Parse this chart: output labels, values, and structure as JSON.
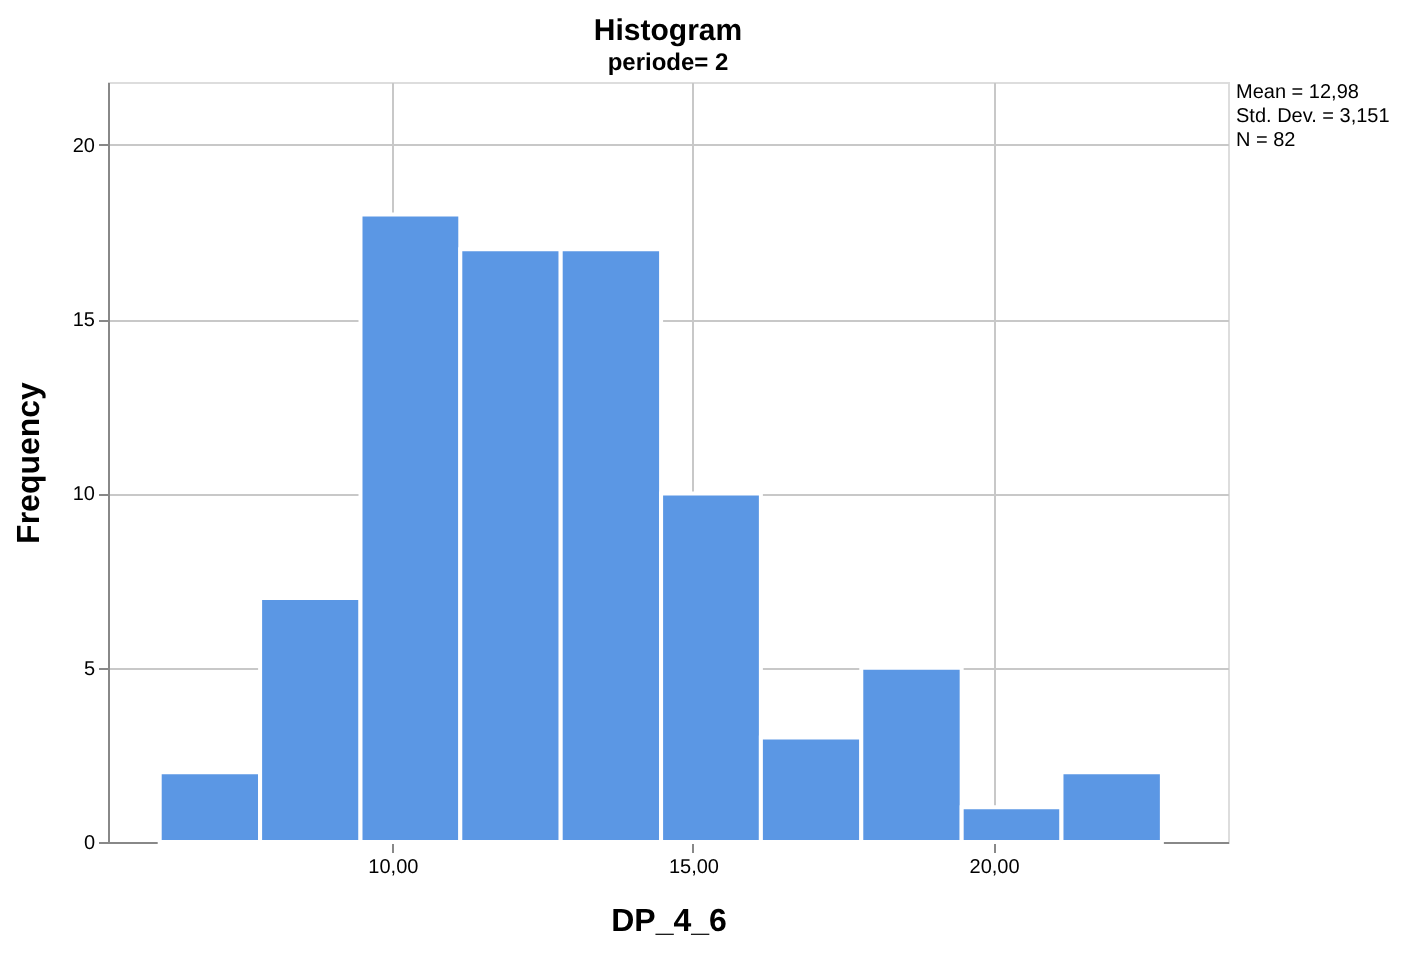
{
  "chart_data": {
    "type": "histogram",
    "title": "Histogram",
    "subtitle": "periode= 2",
    "xlabel": "DP_4_6",
    "ylabel": "Frequency",
    "bins": [
      6.13,
      7.8,
      9.47,
      11.13,
      12.8,
      14.47,
      16.13,
      17.8,
      19.47,
      21.13,
      22.8
    ],
    "values": [
      2,
      7,
      18,
      17,
      17,
      10,
      3,
      5,
      1,
      2
    ],
    "color": "#5b97e4",
    "xlim": [
      5.27,
      23.9
    ],
    "xticks": [
      {
        "value": 10,
        "label": "10,00"
      },
      {
        "value": 15,
        "label": "15,00"
      },
      {
        "value": 20,
        "label": "20,00"
      }
    ],
    "ylim": [
      0,
      21.8
    ],
    "yticks": [
      0,
      5,
      10,
      15,
      20
    ],
    "grid": true,
    "annotations": [
      "Mean = 12,98",
      "Std. Dev. = 3,151",
      "N = 82"
    ]
  }
}
